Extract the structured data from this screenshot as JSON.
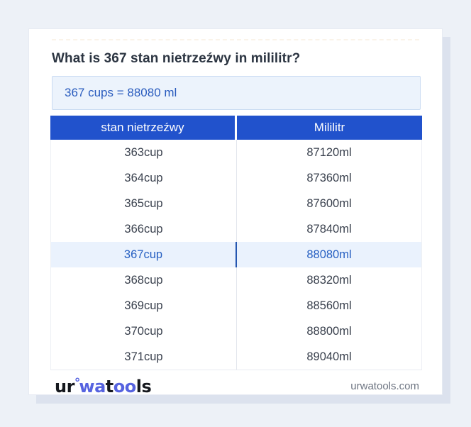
{
  "page": {
    "title": "What is 367 stan nietrzeźwy in mililitr?",
    "result": "367 cups = 88080 ml"
  },
  "table": {
    "headers": [
      "stan nietrzeźwy",
      "Mililitr"
    ],
    "rows": [
      {
        "cup": "363cup",
        "ml": "87120ml",
        "highlight": false
      },
      {
        "cup": "364cup",
        "ml": "87360ml",
        "highlight": false
      },
      {
        "cup": "365cup",
        "ml": "87600ml",
        "highlight": false
      },
      {
        "cup": "366cup",
        "ml": "87840ml",
        "highlight": false
      },
      {
        "cup": "367cup",
        "ml": "88080ml",
        "highlight": true
      },
      {
        "cup": "368cup",
        "ml": "88320ml",
        "highlight": false
      },
      {
        "cup": "369cup",
        "ml": "88560ml",
        "highlight": false
      },
      {
        "cup": "370cup",
        "ml": "88800ml",
        "highlight": false
      },
      {
        "cup": "371cup",
        "ml": "89040ml",
        "highlight": false
      }
    ]
  },
  "footer": {
    "logo": {
      "part_ur": "ur",
      "ring": "°",
      "part_wa": "wa",
      "part_t": "t",
      "part_oo": "oo",
      "part_ls": "ls"
    },
    "site": "urwatools.com"
  },
  "colors": {
    "page_background": "#edf1f7",
    "card_background": "#ffffff",
    "table_header_bg": "#2152cc",
    "highlight_row_bg": "#eaf2fd",
    "highlight_text": "#2760c2",
    "result_box_bg": "#ecf3fc",
    "result_text": "#2a5cbe",
    "logo_blue": "#5663e0",
    "body_text": "#39404d"
  }
}
